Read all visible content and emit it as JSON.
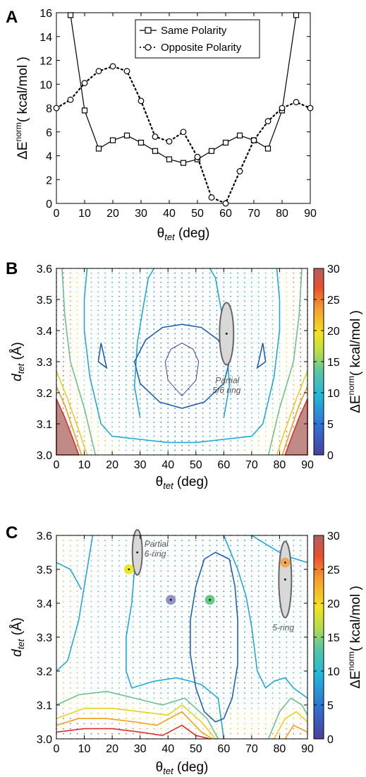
{
  "chart_data": [
    {
      "panel": "A",
      "type": "line",
      "xlabel": "θ_tet (deg)",
      "ylabel": "ΔE^norm ( kcal/mol )",
      "xlim": [
        0,
        90
      ],
      "ylim": [
        0,
        16
      ],
      "xticks": [
        0,
        10,
        20,
        30,
        40,
        50,
        60,
        70,
        80,
        90
      ],
      "yticks": [
        0,
        2,
        4,
        6,
        8,
        10,
        12,
        14,
        16
      ],
      "legend_position": "top-center",
      "series": [
        {
          "name": "Same Polarity",
          "style": "solid",
          "marker": "square",
          "x": [
            5,
            10,
            15,
            20,
            25,
            30,
            35,
            40,
            45,
            50,
            55,
            60,
            65,
            70,
            75,
            80,
            85
          ],
          "y": [
            15.8,
            7.8,
            4.6,
            5.3,
            5.7,
            5.1,
            4.4,
            3.7,
            3.4,
            3.7,
            4.4,
            5.1,
            5.7,
            5.3,
            4.6,
            7.8,
            15.8
          ]
        },
        {
          "name": "Opposite Polarity",
          "style": "dotted",
          "marker": "circle",
          "x": [
            0,
            5,
            10,
            15,
            20,
            25,
            30,
            35,
            40,
            45,
            50,
            55,
            60,
            65,
            70,
            75,
            80,
            85,
            90
          ],
          "y": [
            8.0,
            8.7,
            10.1,
            11.1,
            11.5,
            11.1,
            8.6,
            5.6,
            5.2,
            6.0,
            3.9,
            0.5,
            0.0,
            2.7,
            5.3,
            6.9,
            8.0,
            8.5,
            8.0
          ]
        }
      ]
    },
    {
      "panel": "B",
      "type": "heatmap",
      "xlabel": "θ_tet (deg)",
      "ylabel": "d_tet (Å)",
      "colorbar_label": "ΔE^norm ( kcal/mol )",
      "xlim": [
        0,
        90
      ],
      "ylim": [
        3.0,
        3.6
      ],
      "clim": [
        0,
        30
      ],
      "xticks": [
        0,
        10,
        20,
        30,
        40,
        50,
        60,
        70,
        80,
        90
      ],
      "yticks": [
        "3.0",
        "3.1",
        "3.2",
        "3.3",
        "3.4",
        "3.5",
        "3.6"
      ],
      "cticks": [
        0,
        5,
        10,
        15,
        20,
        25,
        30
      ],
      "annotations": [
        {
          "label_line1": "Partial",
          "label_line2": "5/6 ring",
          "x": 61,
          "y": 3.39
        }
      ]
    },
    {
      "panel": "C",
      "type": "heatmap",
      "xlabel": "θ_tet (deg)",
      "ylabel": "d_tet (Å)",
      "colorbar_label": "ΔE^norm ( kcal/mol )",
      "xlim": [
        0,
        90
      ],
      "ylim": [
        3.0,
        3.6
      ],
      "clim": [
        0,
        30
      ],
      "xticks": [
        0,
        10,
        20,
        30,
        40,
        50,
        60,
        70,
        80,
        90
      ],
      "yticks": [
        "3.0",
        "3.1",
        "3.2",
        "3.3",
        "3.4",
        "3.5",
        "3.6"
      ],
      "cticks": [
        0,
        5,
        10,
        15,
        20,
        25,
        30
      ],
      "annotations": [
        {
          "label_line1": "Partial",
          "label_line2": "6-ring",
          "x": 29,
          "y": 3.55
        },
        {
          "label_line1": "5-ring",
          "label_line2": "",
          "x": 82,
          "y": 3.47
        }
      ],
      "points": [
        {
          "x": 26,
          "y": 3.5,
          "color": "#e6e600"
        },
        {
          "x": 41,
          "y": 3.41,
          "color": "#8080c0"
        },
        {
          "x": 55,
          "y": 3.41,
          "color": "#4cc070"
        },
        {
          "x": 82,
          "y": 3.52,
          "color": "#f5a040"
        }
      ]
    }
  ]
}
